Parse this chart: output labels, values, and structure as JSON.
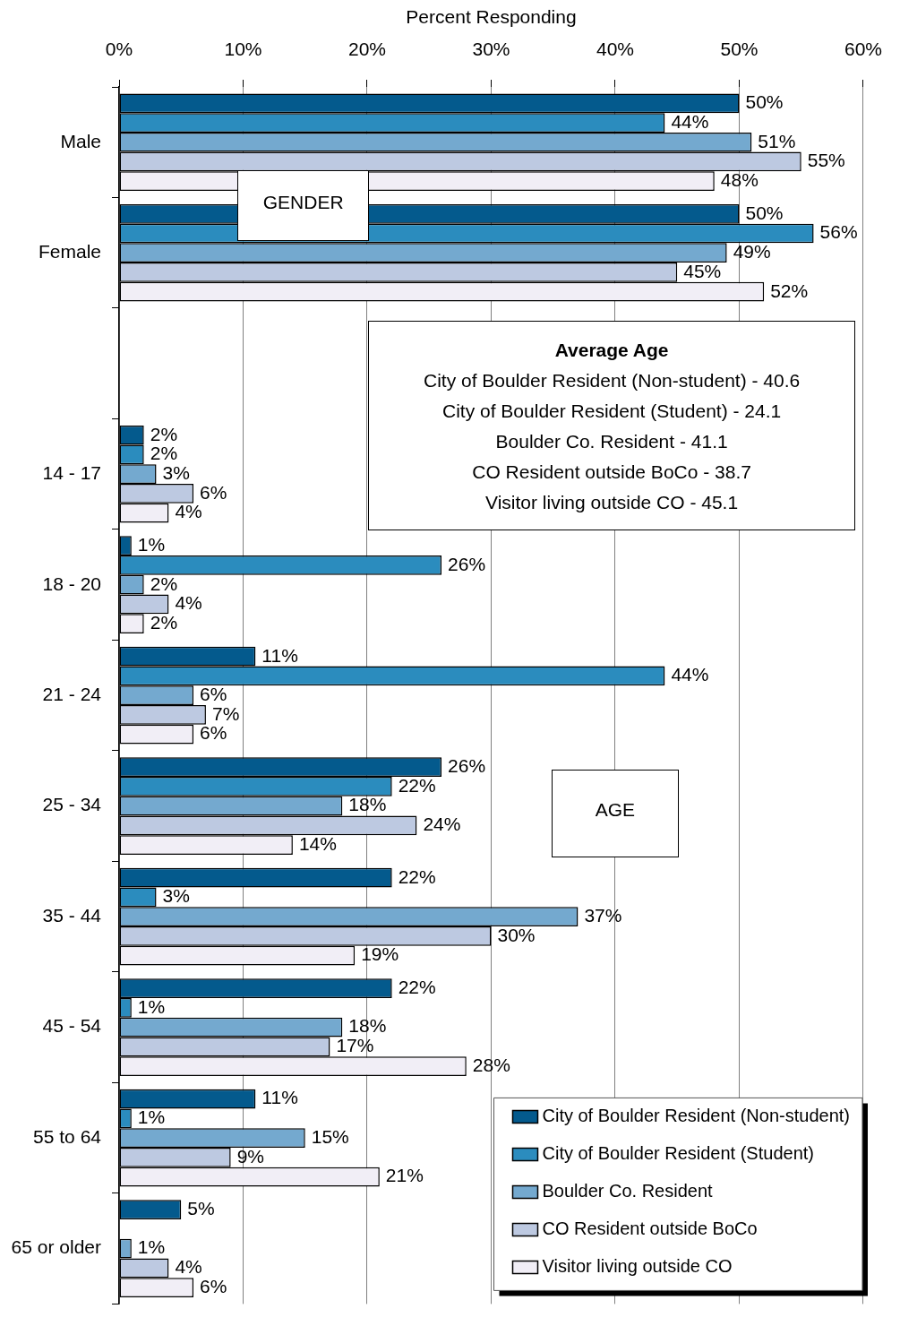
{
  "chart_data": {
    "type": "bar",
    "orientation": "horizontal",
    "xlabel": "Percent Responding",
    "categories": [
      "Male",
      "Female",
      null,
      "14 - 17",
      "18 - 20",
      "21 - 24",
      "25 - 34",
      "35 - 44",
      "45 - 54",
      "55 to 64",
      "65 or older"
    ],
    "series": [
      {
        "name": "City of Boulder Resident (Non-student)",
        "color": "#045a8d",
        "values": [
          50,
          50,
          null,
          2,
          1,
          11,
          26,
          22,
          22,
          11,
          5
        ],
        "value_labels": [
          "50%",
          "50%",
          null,
          "2%",
          "1%",
          "11%",
          "26%",
          "22%",
          "22%",
          "11%",
          "5%"
        ]
      },
      {
        "name": "City of Boulder Resident (Student)",
        "color": "#2b8cbe",
        "values": [
          44,
          56,
          null,
          2,
          26,
          44,
          22,
          3,
          1,
          1,
          null
        ],
        "value_labels": [
          "44%",
          "56%",
          null,
          "2%",
          "26%",
          "44%",
          "22%",
          "3%",
          "1%",
          "1%",
          null
        ]
      },
      {
        "name": "Boulder Co. Resident",
        "color": "#74a9cf",
        "values": [
          51,
          49,
          null,
          3,
          2,
          6,
          18,
          37,
          18,
          15,
          1
        ],
        "value_labels": [
          "51%",
          "49%",
          null,
          "3%",
          "2%",
          "6%",
          "18%",
          "37%",
          "18%",
          "15%",
          "1%"
        ]
      },
      {
        "name": "CO Resident outside BoCo",
        "color": "#bdc9e1",
        "values": [
          55,
          45,
          null,
          6,
          4,
          7,
          24,
          30,
          17,
          9,
          4
        ],
        "value_labels": [
          "55%",
          "45%",
          null,
          "6%",
          "4%",
          "7%",
          "24%",
          "30%",
          "17%",
          "9%",
          "4%"
        ]
      },
      {
        "name": "Visitor living outside CO",
        "color": "#f1eef6",
        "values": [
          48,
          52,
          null,
          4,
          2,
          6,
          14,
          19,
          28,
          21,
          6
        ],
        "value_labels": [
          "48%",
          "52%",
          null,
          "4%",
          "2%",
          "6%",
          "14%",
          "19%",
          "28%",
          "21%",
          "6%"
        ]
      }
    ],
    "xlim": [
      0,
      60
    ],
    "xticks": [
      {
        "value": 0,
        "label": "0%"
      },
      {
        "value": 10,
        "label": "10%"
      },
      {
        "value": 20,
        "label": "20%"
      },
      {
        "value": 30,
        "label": "30%"
      },
      {
        "value": 40,
        "label": "40%"
      },
      {
        "value": 50,
        "label": "50%"
      },
      {
        "value": 60,
        "label": "60%"
      }
    ],
    "grid": "x",
    "legend": "bottom right",
    "annotations": [
      "GENDER",
      "Average Age",
      "City of Boulder Resident (Non-student) - 40.6",
      "City of Boulder Resident (Student) - 24.1",
      "Boulder Co. Resident - 41.1",
      "CO Resident outside BoCo - 38.7",
      "Visitor living outside CO - 45.1",
      "AGE"
    ]
  }
}
